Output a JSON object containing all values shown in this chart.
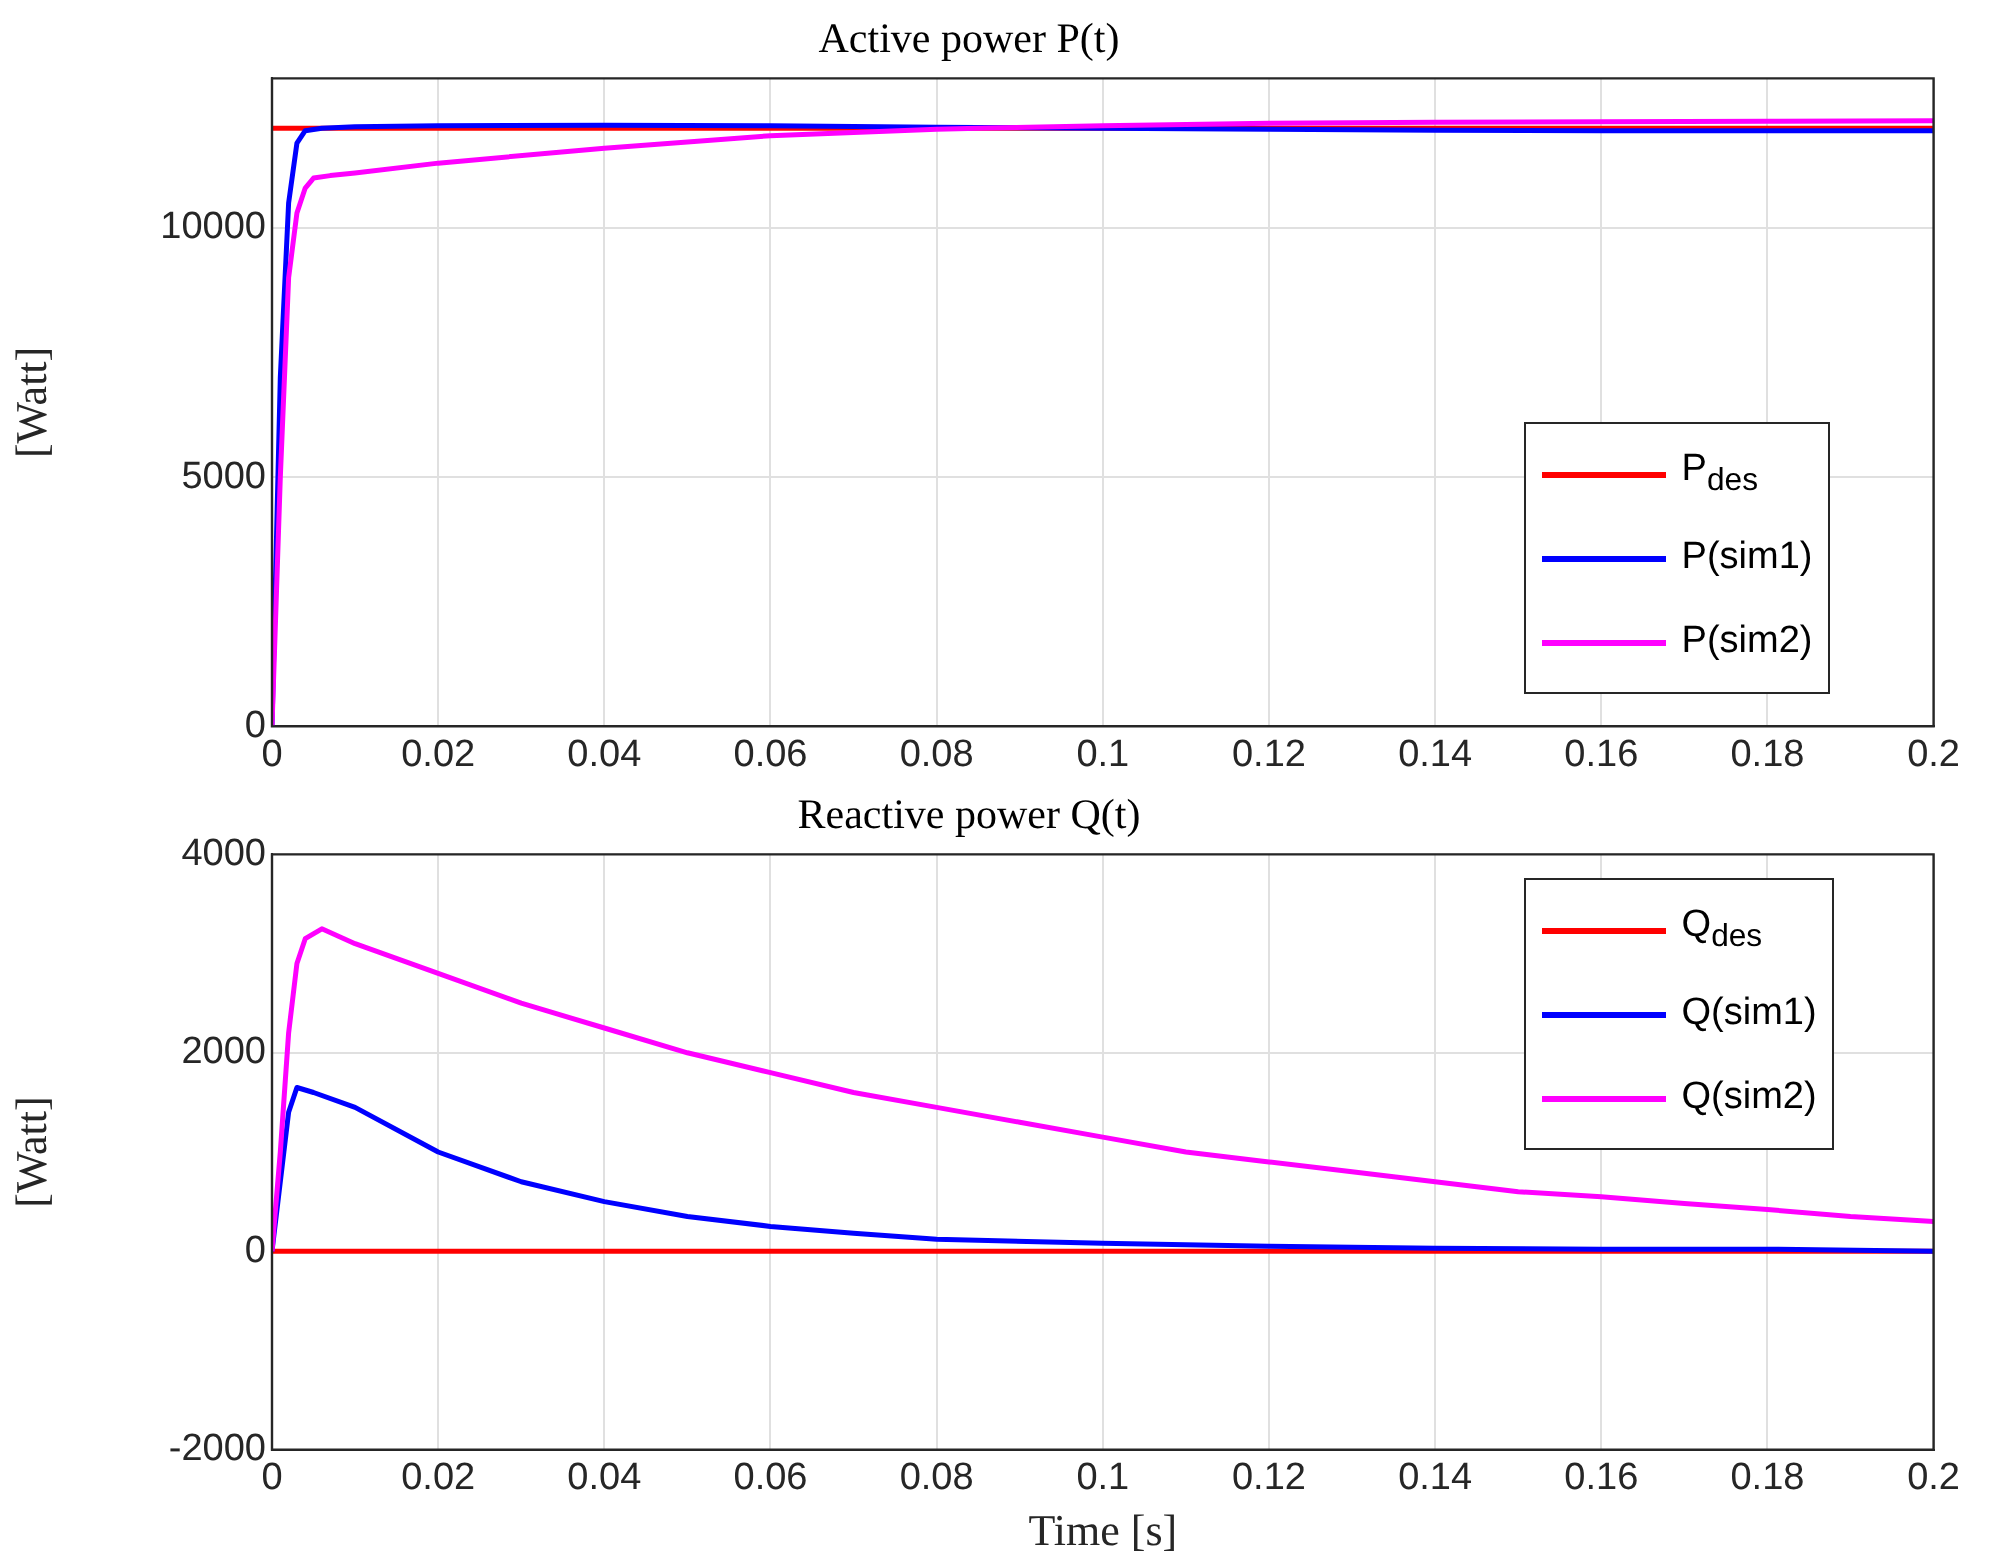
{
  "chart_data": [
    {
      "type": "line",
      "title": "Active power P(t)",
      "ylabel": "[Watt]",
      "xlim": [
        0,
        0.2
      ],
      "ylim": [
        0,
        13000
      ],
      "xticks": [
        0,
        0.02,
        0.04,
        0.06,
        0.08,
        0.1,
        0.12,
        0.14,
        0.16,
        0.18,
        0.2
      ],
      "yticks": [
        0,
        5000,
        10000
      ],
      "grid": true,
      "legend": "bottom right",
      "series": [
        {
          "name": "P$_{des}$",
          "color": "#ff0000",
          "x": [
            0,
            0.2
          ],
          "values": [
            12000,
            12000
          ]
        },
        {
          "name": "P(sim1)",
          "color": "#0000ff",
          "x": [
            0,
            0.001,
            0.002,
            0.003,
            0.004,
            0.006,
            0.01,
            0.02,
            0.04,
            0.06,
            0.08,
            0.1,
            0.12,
            0.14,
            0.16,
            0.18,
            0.2
          ],
          "values": [
            0,
            7000,
            10500,
            11700,
            11950,
            12000,
            12030,
            12050,
            12060,
            12050,
            12020,
            12000,
            11980,
            11960,
            11950,
            11950,
            11950
          ]
        },
        {
          "name": "P(sim2)",
          "color": "#ff00ff",
          "x": [
            0,
            0.001,
            0.002,
            0.003,
            0.004,
            0.005,
            0.007,
            0.01,
            0.02,
            0.04,
            0.06,
            0.08,
            0.085,
            0.1,
            0.12,
            0.14,
            0.16,
            0.18,
            0.2
          ],
          "values": [
            0,
            5000,
            9000,
            10300,
            10800,
            11000,
            11050,
            11100,
            11300,
            11600,
            11850,
            11980,
            12000,
            12050,
            12100,
            12120,
            12130,
            12140,
            12150
          ]
        }
      ]
    },
    {
      "type": "line",
      "title": "Reactive power Q(t)",
      "xlabel": "Time [s]",
      "ylabel": "[Watt]",
      "xlim": [
        0,
        0.2
      ],
      "ylim": [
        -2000,
        4000
      ],
      "xticks": [
        0,
        0.02,
        0.04,
        0.06,
        0.08,
        0.1,
        0.12,
        0.14,
        0.16,
        0.18,
        0.2
      ],
      "yticks": [
        -2000,
        0,
        2000,
        4000
      ],
      "grid": true,
      "legend": "top right",
      "series": [
        {
          "name": "Q$_{des}$",
          "color": "#ff0000",
          "x": [
            0,
            0.2
          ],
          "values": [
            0,
            0
          ]
        },
        {
          "name": "Q(sim1)",
          "color": "#0000ff",
          "x": [
            0,
            0.001,
            0.002,
            0.003,
            0.005,
            0.01,
            0.02,
            0.03,
            0.04,
            0.05,
            0.06,
            0.07,
            0.08,
            0.1,
            0.12,
            0.14,
            0.16,
            0.18,
            0.2
          ],
          "values": [
            0,
            700,
            1400,
            1650,
            1600,
            1450,
            1000,
            700,
            500,
            350,
            250,
            180,
            120,
            80,
            50,
            30,
            20,
            20,
            0
          ]
        },
        {
          "name": "Q(sim2)",
          "color": "#ff00ff",
          "x": [
            0,
            0.001,
            0.002,
            0.003,
            0.004,
            0.006,
            0.01,
            0.02,
            0.03,
            0.04,
            0.05,
            0.06,
            0.07,
            0.08,
            0.09,
            0.1,
            0.11,
            0.12,
            0.13,
            0.14,
            0.15,
            0.16,
            0.17,
            0.18,
            0.19,
            0.2
          ],
          "values": [
            0,
            1000,
            2200,
            2900,
            3150,
            3250,
            3100,
            2800,
            2500,
            2250,
            2000,
            1800,
            1600,
            1450,
            1300,
            1150,
            1000,
            900,
            800,
            700,
            600,
            550,
            480,
            420,
            350,
            300
          ]
        }
      ]
    }
  ]
}
